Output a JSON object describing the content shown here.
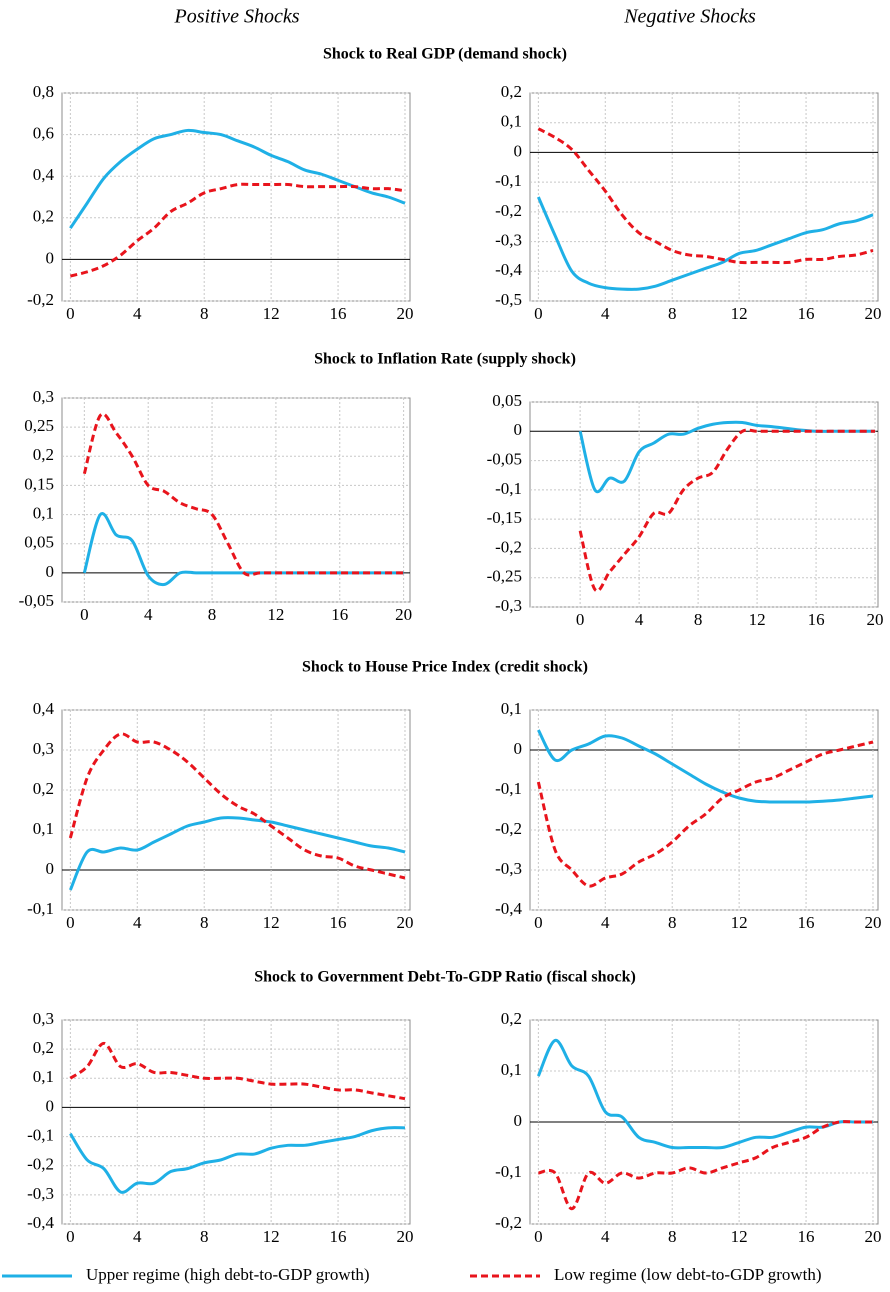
{
  "column_titles": [
    "Positive Shocks",
    "Negative Shocks"
  ],
  "section_titles": [
    "Shock to Real GDP (demand shock)",
    "Shock to Inflation Rate (supply shock)",
    "Shock to House Price Index (credit shock)",
    "Shock to Government Debt-To-GDP Ratio (fiscal shock)"
  ],
  "legend": [
    {
      "name": "Upper regime (high debt-to-GDP growth)",
      "color": "#1fb0e6",
      "dashed": false
    },
    {
      "name": "Low regime (low debt-to-GDP growth)",
      "color": "#e8141c",
      "dashed": true
    }
  ],
  "chart_data": [
    {
      "type": "line",
      "grid": true,
      "xlim": [
        -0.5,
        20.3
      ],
      "xticks": [
        0,
        4,
        8,
        12,
        16,
        20
      ],
      "ylim": [
        -0.2,
        0.8
      ],
      "yticks": [
        {
          "value": -0.2,
          "label": "-0,2"
        },
        0,
        {
          "value": 0.2,
          "label": "0,2"
        },
        {
          "value": 0.4,
          "label": "0,4"
        },
        {
          "value": 0.6,
          "label": "0,6"
        },
        {
          "value": 0.8,
          "label": "0,8"
        }
      ],
      "series": [
        {
          "values": [
            0.15,
            0.27,
            0.39,
            0.47,
            0.53,
            0.58,
            0.6,
            0.62,
            0.61,
            0.6,
            0.57,
            0.54,
            0.5,
            0.47,
            0.43,
            0.41,
            0.38,
            0.35,
            0.32,
            0.3,
            0.27
          ]
        },
        {
          "values": [
            -0.08,
            -0.06,
            -0.03,
            0.02,
            0.09,
            0.15,
            0.23,
            0.27,
            0.32,
            0.34,
            0.36,
            0.36,
            0.36,
            0.36,
            0.35,
            0.35,
            0.35,
            0.35,
            0.34,
            0.34,
            0.33
          ]
        }
      ]
    },
    {
      "type": "line",
      "grid": true,
      "xlim": [
        -0.5,
        20.3
      ],
      "xticks": [
        0,
        4,
        8,
        12,
        16,
        20
      ],
      "ylim": [
        -0.5,
        0.2
      ],
      "yticks": [
        {
          "value": -0.5,
          "label": "-0,5"
        },
        {
          "value": -0.4,
          "label": "-0,4"
        },
        {
          "value": -0.3,
          "label": "-0,3"
        },
        {
          "value": -0.2,
          "label": "-0,2"
        },
        {
          "value": -0.1,
          "label": "-0,1"
        },
        0,
        {
          "value": 0.1,
          "label": "0,1"
        },
        {
          "value": 0.2,
          "label": "0,2"
        }
      ],
      "series": [
        {
          "values": [
            -0.15,
            -0.28,
            -0.4,
            -0.44,
            -0.455,
            -0.46,
            -0.46,
            -0.45,
            -0.43,
            -0.41,
            -0.39,
            -0.37,
            -0.34,
            -0.33,
            -0.31,
            -0.29,
            -0.27,
            -0.26,
            -0.24,
            -0.23,
            -0.21
          ]
        },
        {
          "values": [
            0.08,
            0.05,
            0.01,
            -0.06,
            -0.13,
            -0.21,
            -0.27,
            -0.3,
            -0.33,
            -0.345,
            -0.35,
            -0.36,
            -0.37,
            -0.37,
            -0.37,
            -0.37,
            -0.36,
            -0.36,
            -0.35,
            -0.345,
            -0.33
          ]
        }
      ]
    },
    {
      "type": "line",
      "grid": true,
      "xlim": [
        -1.4,
        20.4
      ],
      "xticks": [
        0,
        4,
        8,
        12,
        16,
        20
      ],
      "ylim": [
        -0.05,
        0.3
      ],
      "yticks": [
        {
          "value": -0.05,
          "label": "-0,05"
        },
        0,
        {
          "value": 0.05,
          "label": "0,05"
        },
        {
          "value": 0.1,
          "label": "0,1"
        },
        {
          "value": 0.15,
          "label": "0,15"
        },
        {
          "value": 0.2,
          "label": "0,2"
        },
        {
          "value": 0.25,
          "label": "0,25"
        },
        {
          "value": 0.3,
          "label": "0,3"
        }
      ],
      "series": [
        {
          "values": [
            0,
            0.1,
            0.065,
            0.055,
            -0.005,
            -0.02,
            0,
            0,
            0,
            0,
            0,
            0,
            0,
            0,
            0,
            0,
            0,
            0,
            0,
            0,
            0
          ]
        },
        {
          "values": [
            0.17,
            0.27,
            0.24,
            0.2,
            0.15,
            0.14,
            0.12,
            0.11,
            0.1,
            0.05,
            0,
            0,
            0,
            0,
            0,
            0,
            0,
            0,
            0,
            0,
            0
          ]
        }
      ]
    },
    {
      "type": "line",
      "grid": true,
      "xlim": [
        -3.4,
        20.2
      ],
      "xticks": [
        0,
        4,
        8,
        12,
        16,
        20
      ],
      "ylim": [
        -0.3,
        0.05
      ],
      "yticks": [
        {
          "value": -0.3,
          "label": "-0,3"
        },
        {
          "value": -0.25,
          "label": "-0,25"
        },
        {
          "value": -0.2,
          "label": "-0,2"
        },
        {
          "value": -0.15,
          "label": "-0,15"
        },
        {
          "value": -0.1,
          "label": "-0,1"
        },
        {
          "value": -0.05,
          "label": "-0,05"
        },
        0,
        {
          "value": 0.05,
          "label": "0,05"
        }
      ],
      "series": [
        {
          "values": [
            0,
            -0.1,
            -0.08,
            -0.085,
            -0.035,
            -0.02,
            -0.005,
            -0.005,
            0.005,
            0.012,
            0.015,
            0.015,
            0.01,
            0.008,
            0.005,
            0.002,
            0,
            0,
            0,
            0,
            0
          ]
        },
        {
          "values": [
            -0.17,
            -0.27,
            -0.24,
            -0.21,
            -0.18,
            -0.14,
            -0.14,
            -0.1,
            -0.08,
            -0.07,
            -0.03,
            0,
            0,
            0,
            0,
            0,
            0,
            0,
            0,
            0,
            0
          ]
        }
      ]
    },
    {
      "type": "line",
      "grid": true,
      "xlim": [
        -0.5,
        20.3
      ],
      "xticks": [
        0,
        4,
        8,
        12,
        16,
        20
      ],
      "ylim": [
        -0.1,
        0.4
      ],
      "yticks": [
        {
          "value": -0.1,
          "label": "-0,1"
        },
        0,
        {
          "value": 0.1,
          "label": "0,1"
        },
        {
          "value": 0.2,
          "label": "0,2"
        },
        {
          "value": 0.3,
          "label": "0,3"
        },
        {
          "value": 0.4,
          "label": "0,4"
        }
      ],
      "series": [
        {
          "values": [
            -0.05,
            0.045,
            0.045,
            0.055,
            0.05,
            0.07,
            0.09,
            0.11,
            0.12,
            0.13,
            0.13,
            0.125,
            0.12,
            0.11,
            0.1,
            0.09,
            0.08,
            0.07,
            0.06,
            0.055,
            0.045
          ]
        },
        {
          "values": [
            0.08,
            0.23,
            0.3,
            0.34,
            0.32,
            0.32,
            0.3,
            0.27,
            0.23,
            0.19,
            0.16,
            0.14,
            0.11,
            0.08,
            0.05,
            0.035,
            0.03,
            0.01,
            0,
            -0.01,
            -0.02
          ]
        }
      ]
    },
    {
      "type": "line",
      "grid": true,
      "xlim": [
        -0.5,
        20.3
      ],
      "xticks": [
        0,
        4,
        8,
        12,
        16,
        20
      ],
      "ylim": [
        -0.4,
        0.1
      ],
      "yticks": [
        {
          "value": -0.4,
          "label": "-0,4"
        },
        {
          "value": -0.3,
          "label": "-0,3"
        },
        {
          "value": -0.2,
          "label": "-0,2"
        },
        {
          "value": -0.1,
          "label": "-0,1"
        },
        0,
        {
          "value": 0.1,
          "label": "0,1"
        }
      ],
      "series": [
        {
          "values": [
            0.05,
            -0.025,
            0,
            0.015,
            0.035,
            0.03,
            0.01,
            -0.01,
            -0.035,
            -0.06,
            -0.085,
            -0.105,
            -0.12,
            -0.128,
            -0.13,
            -0.13,
            -0.13,
            -0.128,
            -0.125,
            -0.12,
            -0.115
          ]
        },
        {
          "values": [
            -0.08,
            -0.25,
            -0.3,
            -0.34,
            -0.32,
            -0.31,
            -0.28,
            -0.26,
            -0.23,
            -0.19,
            -0.16,
            -0.12,
            -0.1,
            -0.08,
            -0.07,
            -0.05,
            -0.03,
            -0.01,
            0,
            0.01,
            0.02
          ]
        }
      ]
    },
    {
      "type": "line",
      "grid": true,
      "xlim": [
        -0.5,
        20.3
      ],
      "xticks": [
        0,
        4,
        8,
        12,
        16,
        20
      ],
      "ylim": [
        -0.4,
        0.3
      ],
      "yticks": [
        {
          "value": -0.4,
          "label": "-0,4"
        },
        {
          "value": -0.3,
          "label": "-0,3"
        },
        {
          "value": -0.2,
          "label": "-0,2"
        },
        {
          "value": -0.1,
          "label": "-0,1"
        },
        0,
        {
          "value": 0.1,
          "label": "0,1"
        },
        {
          "value": 0.2,
          "label": "0,2"
        },
        {
          "value": 0.3,
          "label": "0,3"
        }
      ],
      "series": [
        {
          "values": [
            -0.09,
            -0.18,
            -0.21,
            -0.29,
            -0.26,
            -0.26,
            -0.22,
            -0.21,
            -0.19,
            -0.18,
            -0.16,
            -0.16,
            -0.14,
            -0.13,
            -0.13,
            -0.12,
            -0.11,
            -0.1,
            -0.08,
            -0.07,
            -0.07
          ]
        },
        {
          "values": [
            0.1,
            0.14,
            0.22,
            0.14,
            0.15,
            0.12,
            0.12,
            0.11,
            0.1,
            0.1,
            0.1,
            0.09,
            0.08,
            0.08,
            0.08,
            0.07,
            0.06,
            0.06,
            0.05,
            0.04,
            0.03
          ]
        }
      ]
    },
    {
      "type": "line",
      "grid": true,
      "xlim": [
        -0.5,
        20.3
      ],
      "xticks": [
        0,
        4,
        8,
        12,
        16,
        20
      ],
      "ylim": [
        -0.2,
        0.2
      ],
      "yticks": [
        {
          "value": -0.2,
          "label": "-0,2"
        },
        {
          "value": -0.1,
          "label": "-0,1"
        },
        0,
        {
          "value": 0.1,
          "label": "0,1"
        },
        {
          "value": 0.2,
          "label": "0,2"
        }
      ],
      "series": [
        {
          "values": [
            0.09,
            0.16,
            0.11,
            0.09,
            0.02,
            0.01,
            -0.03,
            -0.04,
            -0.05,
            -0.05,
            -0.05,
            -0.05,
            -0.04,
            -0.03,
            -0.03,
            -0.02,
            -0.01,
            -0.01,
            0,
            0,
            0
          ]
        },
        {
          "values": [
            -0.1,
            -0.1,
            -0.17,
            -0.1,
            -0.12,
            -0.1,
            -0.11,
            -0.1,
            -0.1,
            -0.09,
            -0.1,
            -0.09,
            -0.08,
            -0.07,
            -0.05,
            -0.04,
            -0.03,
            -0.01,
            0,
            0,
            0
          ]
        }
      ]
    }
  ]
}
